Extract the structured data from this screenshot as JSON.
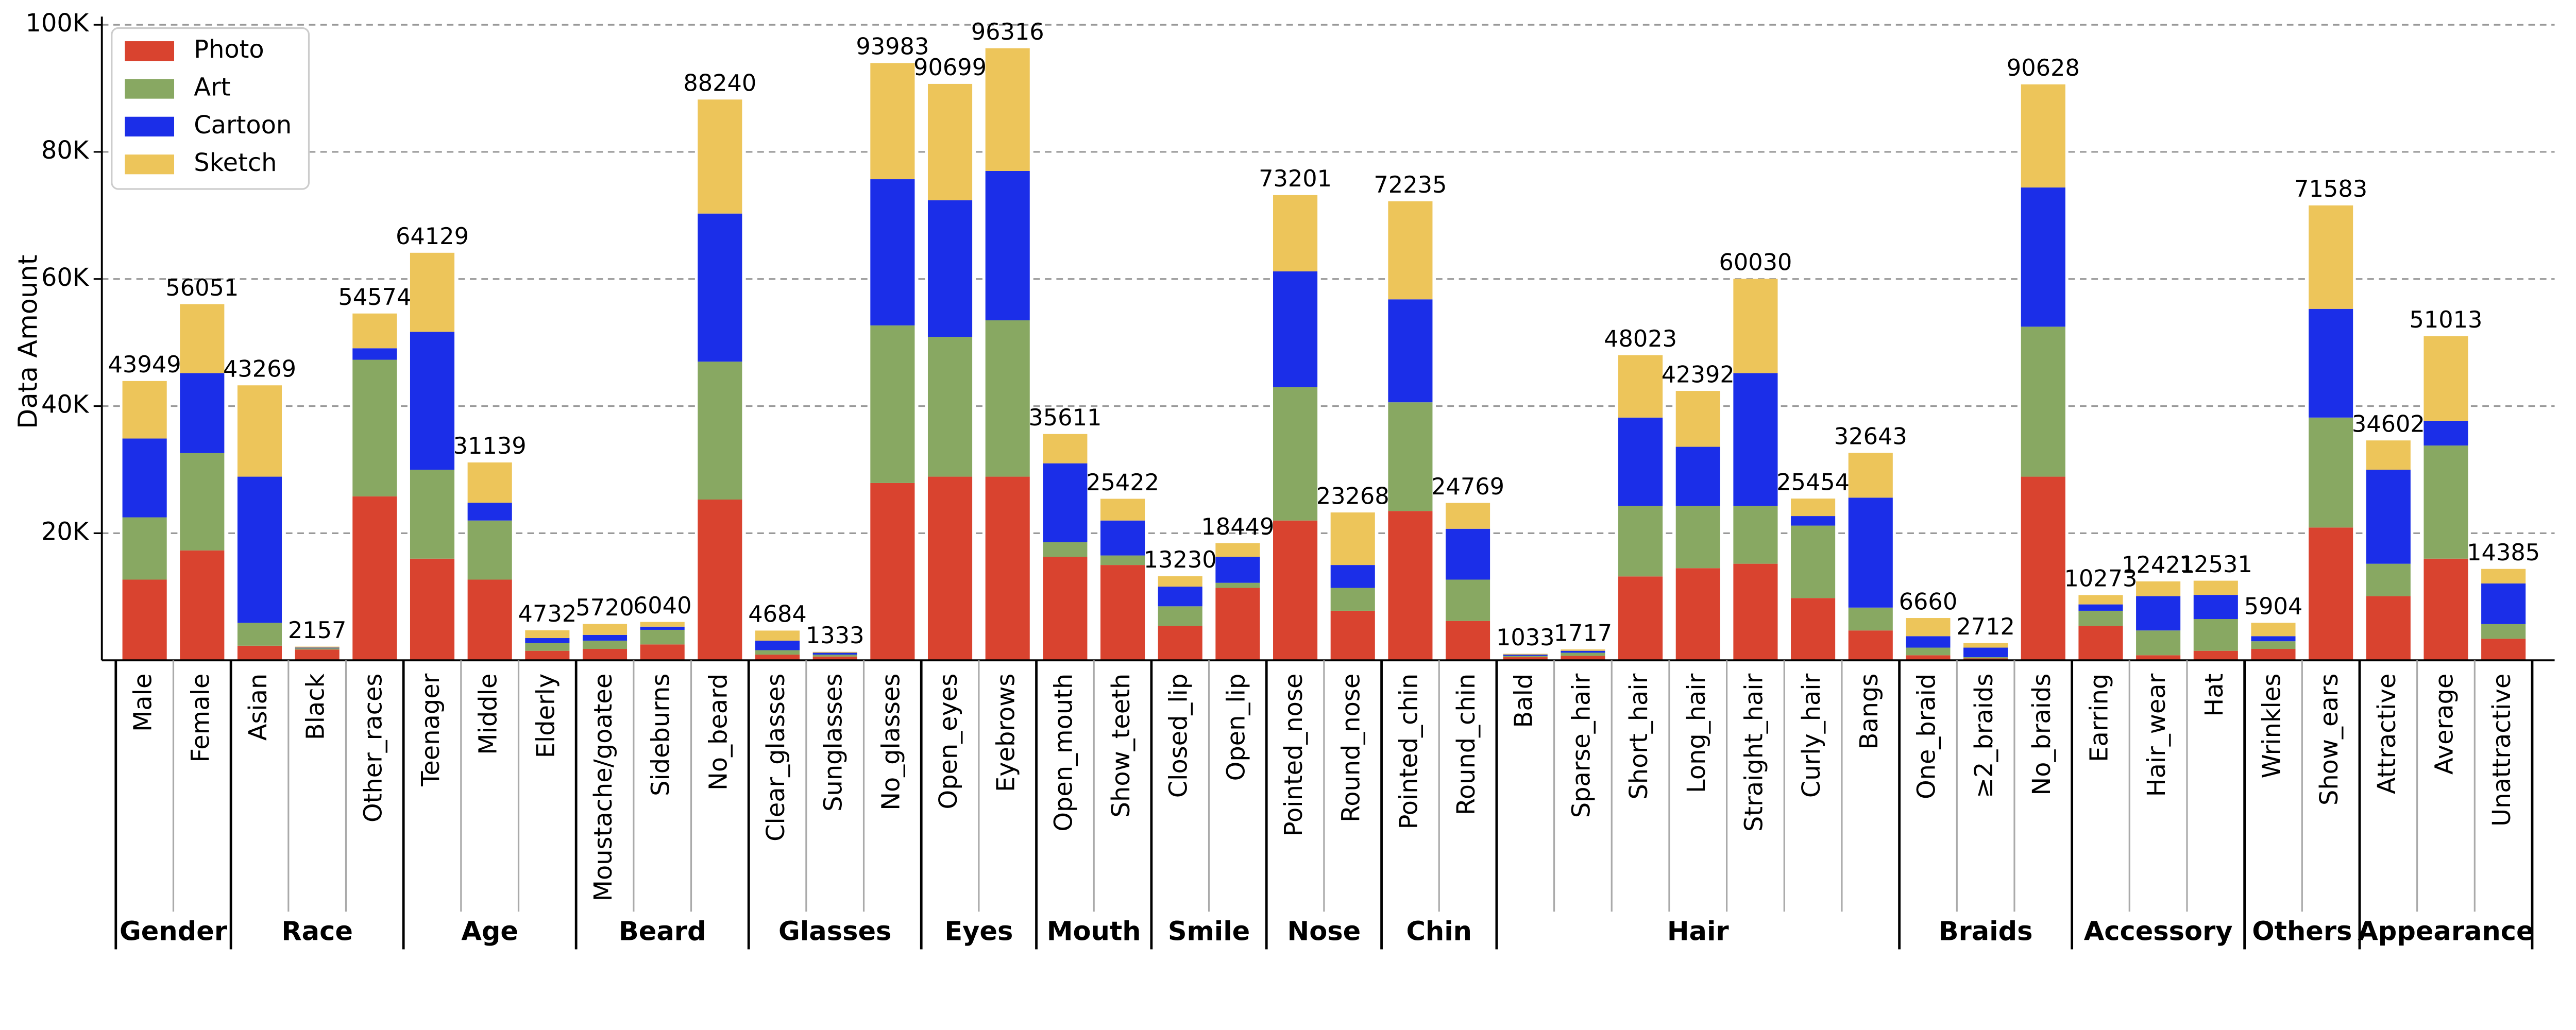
{
  "chart_data": {
    "type": "stacked_bar",
    "y_label": "Data Amount",
    "ylim": [
      0,
      100000
    ],
    "yticks": [
      {
        "value": 20000,
        "label": "20K"
      },
      {
        "value": 40000,
        "label": "40K"
      },
      {
        "value": 60000,
        "label": "60K"
      },
      {
        "value": 80000,
        "label": "80K"
      },
      {
        "value": 100000,
        "label": "100K"
      }
    ],
    "grid": true,
    "legend": "upper-left",
    "categories": [
      "Male",
      "Female",
      "Asian",
      "Black",
      "Other_races",
      "Teenager",
      "Middle",
      "Elderly",
      "Moustache/goatee",
      "Sideburns",
      "No_beard",
      "Clear_glasses",
      "Sunglasses",
      "No_glasses",
      "Open_eyes",
      "Eyebrows",
      "Open_mouth",
      "Show_teeth",
      "Closed_lip",
      "Open_lip",
      "Pointed_nose",
      "Round_nose",
      "Pointed_chin",
      "Round_chin",
      "Bald",
      "Sparse_hair",
      "Short_hair",
      "Long_hair",
      "Straight_hair",
      "Curly_hair",
      "Bangs",
      "One_braid",
      "≥2_braids",
      "No_braids",
      "Earring",
      "Hair_wear",
      "Hat",
      "Wrinkles",
      "Show_ears",
      "Attractive",
      "Average",
      "Unattractive"
    ],
    "category_groups": [
      "Gender",
      "Gender",
      "Race",
      "Race",
      "Race",
      "Age",
      "Age",
      "Age",
      "Beard",
      "Beard",
      "Beard",
      "Glasses",
      "Glasses",
      "Glasses",
      "Eyes",
      "Eyes",
      "Mouth",
      "Mouth",
      "Smile",
      "Smile",
      "Nose",
      "Nose",
      "Chin",
      "Chin",
      "Hair",
      "Hair",
      "Hair",
      "Hair",
      "Hair",
      "Hair",
      "Hair",
      "Braids",
      "Braids",
      "Braids",
      "Accessory",
      "Accessory",
      "Accessory",
      "Others",
      "Others",
      "Appearance",
      "Appearance",
      "Appearance"
    ],
    "totals": [
      43949,
      56051,
      43269,
      2157,
      54574,
      64129,
      31139,
      4732,
      5720,
      6040,
      88240,
      4684,
      1333,
      93983,
      90699,
      96316,
      35611,
      25422,
      13230,
      18449,
      73201,
      23268,
      72235,
      24769,
      1033,
      1717,
      48023,
      42392,
      60030,
      25454,
      32643,
      6660,
      2712,
      90628,
      10273,
      12421,
      12531,
      5904,
      71583,
      34602,
      51013,
      14385
    ],
    "series": [
      {
        "name": "Photo",
        "color": "#d9432f",
        "values": [
          12700,
          17300,
          2300,
          1700,
          25800,
          16000,
          12700,
          1500,
          1800,
          2500,
          25300,
          900,
          600,
          27900,
          28900,
          28900,
          16300,
          15000,
          5400,
          11400,
          22000,
          7800,
          23500,
          6200,
          500,
          700,
          13200,
          14500,
          15200,
          9800,
          4700,
          800,
          300,
          28900,
          5400,
          800,
          1500,
          1800,
          20900,
          10100,
          16000,
          3400
        ]
      },
      {
        "name": "Art",
        "color": "#88a862",
        "values": [
          9800,
          15300,
          3600,
          200,
          21500,
          14000,
          9300,
          1200,
          1300,
          2300,
          21700,
          700,
          300,
          24800,
          22000,
          24600,
          2300,
          1500,
          3100,
          800,
          21000,
          3600,
          17100,
          6500,
          200,
          500,
          11100,
          9800,
          9100,
          11400,
          3600,
          1200,
          200,
          23600,
          2400,
          3900,
          5000,
          1200,
          17300,
          5100,
          17800,
          2300
        ]
      },
      {
        "name": "Cartoon",
        "color": "#1b2ee8",
        "values": [
          12400,
          12600,
          23000,
          100,
          1800,
          21700,
          2800,
          800,
          900,
          500,
          23300,
          1500,
          300,
          23000,
          21500,
          23500,
          12400,
          5500,
          3100,
          4100,
          18200,
          3600,
          16200,
          8000,
          200,
          300,
          13900,
          9300,
          20900,
          1500,
          17300,
          1800,
          1500,
          21900,
          1000,
          5400,
          3800,
          800,
          17100,
          14800,
          3900,
          6400
        ]
      },
      {
        "name": "Sketch",
        "color": "#edc55a",
        "values": [
          9049,
          10851,
          14369,
          157,
          5474,
          12429,
          6339,
          1232,
          1720,
          740,
          17940,
          1584,
          133,
          18283,
          18299,
          19316,
          4611,
          3422,
          1630,
          2149,
          12001,
          8268,
          15435,
          4069,
          133,
          217,
          9823,
          8792,
          14830,
          2754,
          7043,
          2860,
          712,
          16228,
          1473,
          2321,
          2231,
          2104,
          16283,
          4602,
          13313,
          2285
        ]
      }
    ]
  }
}
